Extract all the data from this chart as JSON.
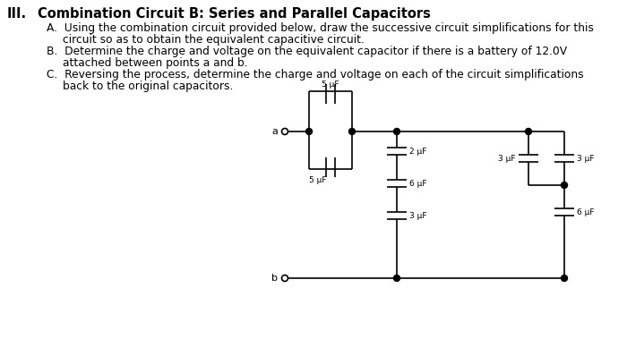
{
  "bg_color": "#ffffff",
  "lc": "black",
  "lw": 1.2,
  "title_num": "III.",
  "title_text": "Combination Circuit B: Series and Parallel Capacitors",
  "line_A1": "A.  Using the combination circuit provided below, draw the successive circuit simplifications for this",
  "line_A2": "circuit so as to obtain the equivalent capacitive circuit.",
  "line_B1": "B.  Determine the charge and voltage on the equivalent capacitor if there is a battery of 12.0V",
  "line_B2": "attached between points a and b.",
  "line_C1": "C.  Reversing the process, determine the charge and voltage on each of the circuit simplifications",
  "line_C2": "back to the original capacitors.",
  "fs_title": 10.5,
  "fs_body": 8.8,
  "cap_labels": {
    "top5": "5 μF",
    "bot5": "5 μF",
    "s2": "2 μF",
    "s6": "6 μF",
    "s3": "3 μF",
    "r3l": "3 μF",
    "r3r": "3 μF",
    "r6": "6 μF"
  }
}
